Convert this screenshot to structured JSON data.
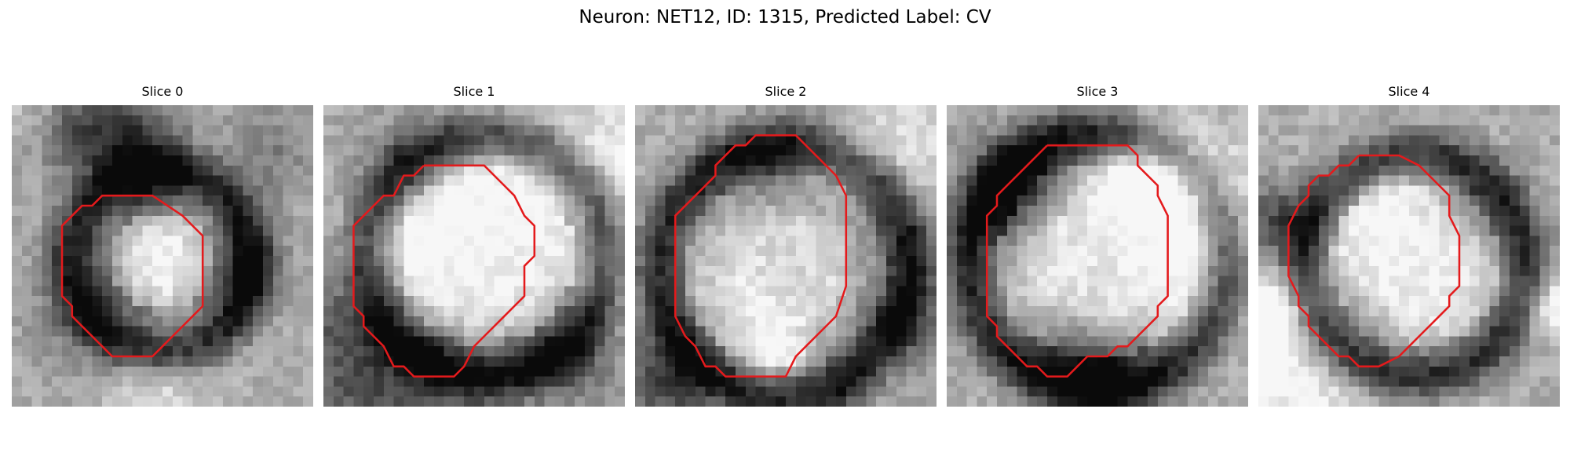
{
  "figure": {
    "title": "Neuron: NET12, ID: 1315, Predicted Label: CV"
  },
  "contour_color": "#e41a1c",
  "slices": [
    {
      "title": "Slice 0",
      "membrane_center": [
        0.5,
        0.52
      ],
      "membrane_radius": 0.3,
      "lumen_radius": 0.17
    },
    {
      "title": "Slice 1",
      "membrane_center": [
        0.54,
        0.5
      ],
      "membrane_radius": 0.4,
      "lumen_radius": 0.29
    },
    {
      "title": "Slice 2",
      "membrane_center": [
        0.5,
        0.55
      ],
      "membrane_radius": 0.42,
      "lumen_radius": 0.33
    },
    {
      "title": "Slice 3",
      "membrane_center": [
        0.5,
        0.52
      ],
      "membrane_radius": 0.43,
      "lumen_radius": 0.33
    },
    {
      "title": "Slice 4",
      "membrane_center": [
        0.52,
        0.53
      ],
      "membrane_radius": 0.37,
      "lumen_radius": 0.28
    }
  ],
  "contours": [
    [
      [
        11,
        9
      ],
      [
        14,
        9
      ],
      [
        17,
        11
      ],
      [
        18,
        12
      ],
      [
        19,
        13
      ],
      [
        19,
        16
      ],
      [
        19,
        20
      ],
      [
        18,
        21
      ],
      [
        17,
        22
      ],
      [
        16,
        23
      ],
      [
        15,
        24
      ],
      [
        14,
        25
      ],
      [
        13,
        25
      ],
      [
        10,
        25
      ],
      [
        9,
        24
      ],
      [
        8,
        23
      ],
      [
        7,
        22
      ],
      [
        6,
        21
      ],
      [
        6,
        20
      ],
      [
        5,
        19
      ],
      [
        5,
        15
      ],
      [
        5,
        12
      ],
      [
        6,
        11
      ],
      [
        7,
        10
      ],
      [
        8,
        10
      ],
      [
        9,
        9
      ],
      [
        11,
        9
      ]
    ],
    [
      [
        10,
        6
      ],
      [
        16,
        6
      ],
      [
        18,
        8
      ],
      [
        19,
        9
      ],
      [
        20,
        11
      ],
      [
        21,
        12
      ],
      [
        21,
        15
      ],
      [
        20,
        16
      ],
      [
        20,
        17
      ],
      [
        20,
        19
      ],
      [
        19,
        20
      ],
      [
        18,
        21
      ],
      [
        17,
        22
      ],
      [
        16,
        23
      ],
      [
        15,
        24
      ],
      [
        14,
        26
      ],
      [
        13,
        27
      ],
      [
        9,
        27
      ],
      [
        8,
        26
      ],
      [
        7,
        26
      ],
      [
        6,
        24
      ],
      [
        5,
        23
      ],
      [
        4,
        22
      ],
      [
        4,
        21
      ],
      [
        3,
        20
      ],
      [
        3,
        19
      ],
      [
        3,
        15
      ],
      [
        3,
        12
      ],
      [
        4,
        11
      ],
      [
        5,
        10
      ],
      [
        6,
        9
      ],
      [
        7,
        9
      ],
      [
        8,
        7
      ],
      [
        9,
        7
      ],
      [
        10,
        6
      ]
    ],
    [
      [
        13,
        3
      ],
      [
        16,
        3
      ],
      [
        18,
        5
      ],
      [
        20,
        7
      ],
      [
        21,
        9
      ],
      [
        21,
        14
      ],
      [
        21,
        18
      ],
      [
        20,
        21
      ],
      [
        19,
        22
      ],
      [
        17,
        24
      ],
      [
        16,
        25
      ],
      [
        15,
        27
      ],
      [
        13,
        27
      ],
      [
        9,
        27
      ],
      [
        8,
        26
      ],
      [
        7,
        26
      ],
      [
        6,
        24
      ],
      [
        5,
        23
      ],
      [
        4,
        21
      ],
      [
        4,
        15
      ],
      [
        4,
        11
      ],
      [
        5,
        10
      ],
      [
        6,
        9
      ],
      [
        7,
        8
      ],
      [
        8,
        7
      ],
      [
        8,
        6
      ],
      [
        9,
        5
      ],
      [
        10,
        4
      ],
      [
        11,
        4
      ],
      [
        12,
        3
      ],
      [
        13,
        3
      ]
    ],
    [
      [
        10,
        4
      ],
      [
        18,
        4
      ],
      [
        19,
        5
      ],
      [
        19,
        6
      ],
      [
        20,
        7
      ],
      [
        21,
        8
      ],
      [
        21,
        9
      ],
      [
        22,
        11
      ],
      [
        22,
        15
      ],
      [
        22,
        19
      ],
      [
        21,
        20
      ],
      [
        21,
        21
      ],
      [
        20,
        22
      ],
      [
        19,
        23
      ],
      [
        18,
        24
      ],
      [
        17,
        24
      ],
      [
        16,
        25
      ],
      [
        14,
        25
      ],
      [
        13,
        26
      ],
      [
        12,
        27
      ],
      [
        10,
        27
      ],
      [
        9,
        26
      ],
      [
        8,
        26
      ],
      [
        7,
        25
      ],
      [
        6,
        24
      ],
      [
        5,
        23
      ],
      [
        5,
        22
      ],
      [
        4,
        21
      ],
      [
        4,
        20
      ],
      [
        4,
        16
      ],
      [
        4,
        11
      ],
      [
        5,
        10
      ],
      [
        5,
        9
      ],
      [
        6,
        8
      ],
      [
        7,
        7
      ],
      [
        8,
        6
      ],
      [
        9,
        5
      ],
      [
        10,
        4
      ]
    ],
    [
      [
        10,
        5
      ],
      [
        14,
        5
      ],
      [
        16,
        6
      ],
      [
        17,
        7
      ],
      [
        18,
        8
      ],
      [
        19,
        9
      ],
      [
        19,
        10
      ],
      [
        19,
        11
      ],
      [
        20,
        13
      ],
      [
        20,
        15
      ],
      [
        20,
        18
      ],
      [
        19,
        19
      ],
      [
        19,
        20
      ],
      [
        18,
        21
      ],
      [
        17,
        22
      ],
      [
        16,
        23
      ],
      [
        15,
        24
      ],
      [
        14,
        25
      ],
      [
        12,
        26
      ],
      [
        10,
        26
      ],
      [
        9,
        25
      ],
      [
        8,
        25
      ],
      [
        7,
        24
      ],
      [
        6,
        23
      ],
      [
        5,
        22
      ],
      [
        5,
        21
      ],
      [
        4,
        20
      ],
      [
        4,
        19
      ],
      [
        3,
        17
      ],
      [
        3,
        14
      ],
      [
        3,
        12
      ],
      [
        4,
        10
      ],
      [
        5,
        9
      ],
      [
        5,
        8
      ],
      [
        6,
        7
      ],
      [
        7,
        7
      ],
      [
        8,
        6
      ],
      [
        9,
        6
      ],
      [
        10,
        5
      ]
    ]
  ]
}
